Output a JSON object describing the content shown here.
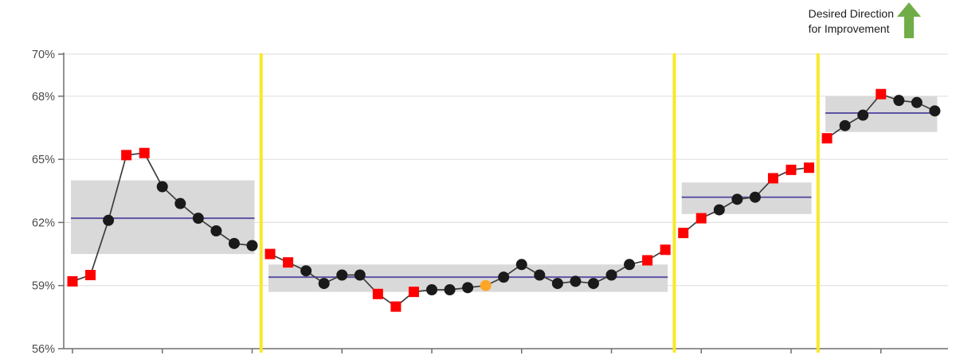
{
  "annotation": {
    "line1": "Desired Direction",
    "line2": "for Improvement"
  },
  "colors": {
    "band": "#D9D9D9",
    "mean_line": "#5C54A4",
    "divider": "#F7E928",
    "signal": "#FF0000",
    "normal": "#1A1A1A",
    "highlight": "#FFA629",
    "series_line": "#3D3D3D",
    "grid": "#DCDCDC",
    "axis": "#6E6E6E",
    "tick_label": "#4A4A4A",
    "arrow": "#70AD47"
  },
  "chart_data": {
    "type": "line",
    "subtype": "spc-control-chart",
    "title": "",
    "xlabel": "",
    "ylabel": "",
    "ylim": [
      56,
      70
    ],
    "grid": true,
    "legend_position": "none",
    "y_ticks": [
      {
        "value": 70,
        "label": "70%"
      },
      {
        "value": 68,
        "label": "68%"
      },
      {
        "value": 65,
        "label": "65%"
      },
      {
        "value": 62,
        "label": "62%"
      },
      {
        "value": 59,
        "label": "59%"
      },
      {
        "value": 56,
        "label": "56%"
      }
    ],
    "x_tick_every": 5,
    "marker_styles": {
      "normal": "black-circle",
      "signal": "red-square",
      "highlight": "orange-circle"
    },
    "segments": [
      {
        "mean": 62.2,
        "upper": 64.0,
        "lower": 60.5,
        "points": [
          {
            "v": 59.2,
            "t": "signal"
          },
          {
            "v": 59.5,
            "t": "signal"
          },
          {
            "v": 62.1,
            "t": "normal"
          },
          {
            "v": 65.2,
            "t": "signal"
          },
          {
            "v": 65.3,
            "t": "signal"
          },
          {
            "v": 63.7,
            "t": "normal"
          },
          {
            "v": 62.9,
            "t": "normal"
          },
          {
            "v": 62.2,
            "t": "normal"
          },
          {
            "v": 61.6,
            "t": "normal"
          },
          {
            "v": 61.0,
            "t": "normal"
          },
          {
            "v": 60.9,
            "t": "normal"
          }
        ]
      },
      {
        "mean": 59.4,
        "upper": 60.0,
        "lower": 58.7,
        "points": [
          {
            "v": 60.5,
            "t": "signal"
          },
          {
            "v": 60.1,
            "t": "signal"
          },
          {
            "v": 59.7,
            "t": "normal"
          },
          {
            "v": 59.1,
            "t": "normal"
          },
          {
            "v": 59.5,
            "t": "normal"
          },
          {
            "v": 59.5,
            "t": "normal"
          },
          {
            "v": 58.6,
            "t": "signal"
          },
          {
            "v": 58.0,
            "t": "signal"
          },
          {
            "v": 58.7,
            "t": "signal"
          },
          {
            "v": 58.8,
            "t": "normal"
          },
          {
            "v": 58.8,
            "t": "normal"
          },
          {
            "v": 58.9,
            "t": "normal"
          },
          {
            "v": 59.0,
            "t": "highlight"
          },
          {
            "v": 59.4,
            "t": "normal"
          },
          {
            "v": 60.0,
            "t": "normal"
          },
          {
            "v": 59.5,
            "t": "normal"
          },
          {
            "v": 59.1,
            "t": "normal"
          },
          {
            "v": 59.2,
            "t": "normal"
          },
          {
            "v": 59.1,
            "t": "normal"
          },
          {
            "v": 59.5,
            "t": "normal"
          },
          {
            "v": 60.0,
            "t": "normal"
          },
          {
            "v": 60.2,
            "t": "signal"
          },
          {
            "v": 60.7,
            "t": "signal"
          }
        ]
      },
      {
        "mean": 63.2,
        "upper": 63.9,
        "lower": 62.4,
        "points": [
          {
            "v": 61.5,
            "t": "signal"
          },
          {
            "v": 62.2,
            "t": "signal"
          },
          {
            "v": 62.6,
            "t": "normal"
          },
          {
            "v": 63.1,
            "t": "normal"
          },
          {
            "v": 63.2,
            "t": "normal"
          },
          {
            "v": 64.1,
            "t": "signal"
          },
          {
            "v": 64.5,
            "t": "signal"
          },
          {
            "v": 64.6,
            "t": "signal"
          }
        ]
      },
      {
        "mean": 67.2,
        "upper": 68.0,
        "lower": 66.3,
        "points": [
          {
            "v": 66.0,
            "t": "signal"
          },
          {
            "v": 66.6,
            "t": "normal"
          },
          {
            "v": 67.1,
            "t": "normal"
          },
          {
            "v": 68.1,
            "t": "signal"
          },
          {
            "v": 67.8,
            "t": "normal"
          },
          {
            "v": 67.7,
            "t": "normal"
          },
          {
            "v": 67.3,
            "t": "normal"
          }
        ]
      }
    ]
  }
}
